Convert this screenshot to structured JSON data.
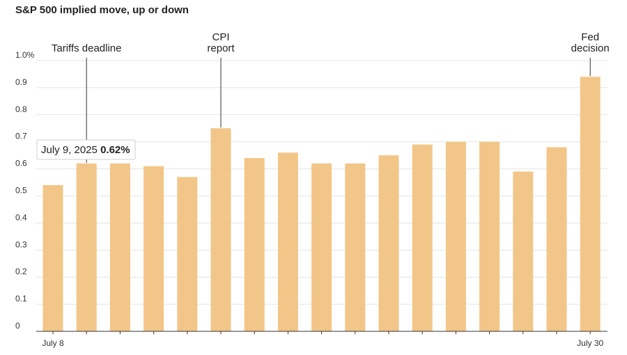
{
  "chart_data": {
    "type": "bar",
    "title": "S&P 500 implied move, up or down",
    "xlabel": "",
    "ylabel": "",
    "ylim": [
      0,
      1.0
    ],
    "yticks": [
      {
        "value": 0,
        "label": "0"
      },
      {
        "value": 0.1,
        "label": "0.1"
      },
      {
        "value": 0.2,
        "label": "0.2"
      },
      {
        "value": 0.3,
        "label": "0.3"
      },
      {
        "value": 0.4,
        "label": "0.4"
      },
      {
        "value": 0.5,
        "label": "0.5"
      },
      {
        "value": 0.6,
        "label": "0.6"
      },
      {
        "value": 0.7,
        "label": "0.7"
      },
      {
        "value": 0.8,
        "label": "0.8"
      },
      {
        "value": 0.9,
        "label": "0.9"
      },
      {
        "value": 1.0,
        "label": "1.0%"
      }
    ],
    "grid": true,
    "bar_color": "#f2c688",
    "values": [
      0.54,
      0.62,
      0.62,
      0.61,
      0.57,
      0.75,
      0.64,
      0.66,
      0.62,
      0.62,
      0.65,
      0.69,
      0.7,
      0.7,
      0.59,
      0.68,
      0.94
    ],
    "x_labels": [
      {
        "index": 0,
        "label": "July 8"
      },
      {
        "index": 16,
        "label": "July 30"
      }
    ],
    "annotations": [
      {
        "index": 1,
        "lines": [
          "Tariffs deadline"
        ]
      },
      {
        "index": 5,
        "lines": [
          "CPI",
          "report"
        ]
      },
      {
        "index": 16,
        "lines": [
          "Fed",
          "decision"
        ]
      }
    ],
    "tooltip": {
      "index": 1,
      "date": "July 9, 2025",
      "value": "0.62%"
    }
  }
}
